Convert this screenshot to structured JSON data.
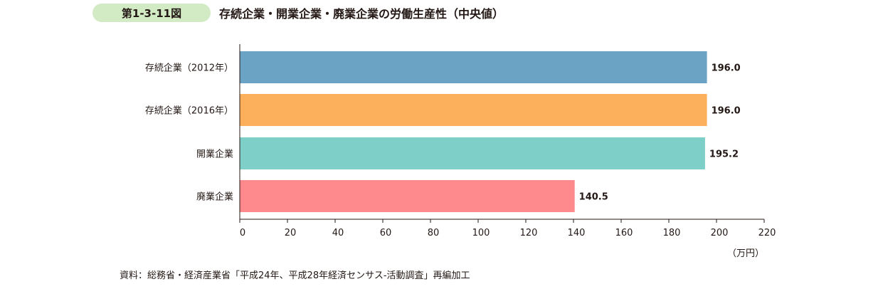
{
  "figure": {
    "number": "第1-3-11図",
    "title": "存続企業・開業企業・廃業企業の労働生産性（中央値）"
  },
  "source": "資料：総務省・経済産業省「平成24年、平成28年経済センサス‐活動調査」再編加工",
  "chart_data": {
    "type": "bar",
    "orientation": "horizontal",
    "title": "存続企業・開業企業・廃業企業の労働生産性（中央値）",
    "categories": [
      "存続企業（2012年）",
      "存続企業（2016年）",
      "開業企業",
      "廃業企業"
    ],
    "values": [
      196.0,
      196.0,
      195.2,
      140.5
    ],
    "value_labels": [
      "196.0",
      "196.0",
      "195.2",
      "140.5"
    ],
    "colors": [
      "#6aa3c3",
      "#fcb05b",
      "#7fcfc9",
      "#fe8a8d"
    ],
    "xlim": [
      0,
      220
    ],
    "xticks": [
      0,
      20,
      40,
      60,
      80,
      100,
      120,
      140,
      160,
      180,
      200,
      220
    ],
    "xlabel": "",
    "ylabel": "",
    "unit": "（万円）",
    "grid": false,
    "legend": "none"
  }
}
